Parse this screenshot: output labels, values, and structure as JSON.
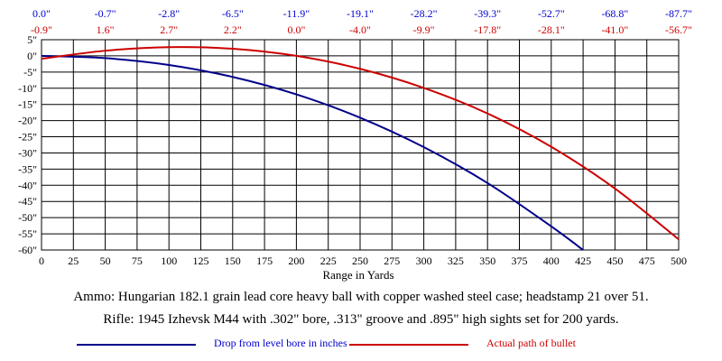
{
  "chart_data": {
    "type": "line",
    "xlabel": "Range in Yards",
    "ylabel": "",
    "xlim": [
      0,
      500
    ],
    "ylim": [
      -60,
      5
    ],
    "grid": true,
    "x_ticks": [
      "0",
      "25",
      "50",
      "75",
      "100",
      "125",
      "150",
      "175",
      "200",
      "225",
      "250",
      "275",
      "300",
      "325",
      "350",
      "375",
      "400",
      "425",
      "450",
      "475",
      "500"
    ],
    "y_ticks": [
      "5\"",
      "0\"",
      "-5\"",
      "-10\"",
      "-15\"",
      "-20\"",
      "-25\"",
      "-30\"",
      "-35\"",
      "-40\"",
      "-45\"",
      "-50\"",
      "-55\"",
      "-60\""
    ],
    "top_row_drop": [
      "0.0\"",
      "-0.7\"",
      "-2.8\"",
      "-6.5\"",
      "-11.9\"",
      "-19.1\"",
      "-28.2\"",
      "-39.3\"",
      "-52.7\"",
      "-68.8\"",
      "-87.7\""
    ],
    "top_row_path": [
      "-0.9\"",
      "1.6\"",
      "2.7\"",
      "2.2\"",
      "0.0\"",
      "-4.0\"",
      "-9.9\"",
      "-17.8\"",
      "-28.1\"",
      "-41.0\"",
      "-56.7\""
    ],
    "series": [
      {
        "name": "Drop from level bore in inches",
        "color": "#00008b",
        "x": [
          0,
          50,
          100,
          150,
          200,
          250,
          300,
          350,
          400,
          425
        ],
        "y": [
          0.0,
          -0.7,
          -2.8,
          -6.5,
          -11.9,
          -19.1,
          -28.2,
          -39.3,
          -52.7,
          -60.0
        ]
      },
      {
        "name": "Actual path of bullet",
        "color": "#cc0000",
        "x": [
          0,
          50,
          100,
          150,
          200,
          250,
          300,
          350,
          400,
          450,
          500
        ],
        "y": [
          -0.9,
          1.6,
          2.7,
          2.2,
          0.0,
          -4.0,
          -9.9,
          -17.8,
          -28.1,
          -41.0,
          -56.7
        ]
      }
    ]
  },
  "captions": {
    "ammo": "Ammo:  Hungarian 182.1 grain lead core heavy ball with copper washed steel case; headstamp 21 over 51.",
    "rifle": "Rifle:  1945 Izhevsk M44 with .302\" bore, .313\" groove and .895\" high sights set for 200 yards."
  },
  "legend": {
    "drop_label": "Drop from level bore in inches",
    "path_label": "Actual path of bullet"
  },
  "colors": {
    "drop": "#00008b",
    "path": "#cc0000",
    "drop_text": "#0000cc",
    "path_text": "#cc0000"
  }
}
